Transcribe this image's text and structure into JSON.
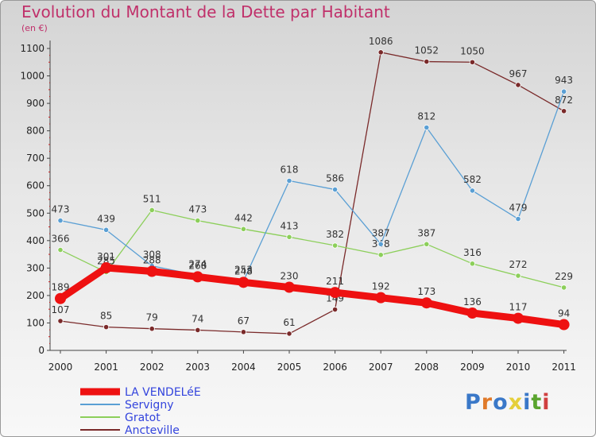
{
  "title": "Evolution du Montant de la Dette par Habitant",
  "subtitle": "(en €)",
  "logo": {
    "text": "Proxiti",
    "colors": [
      "#3a78c8",
      "#e07a2a",
      "#3a78c8",
      "#e5cf3a",
      "#3a78c8",
      "#5aa42e",
      "#d04040"
    ]
  },
  "chart_data": {
    "type": "line",
    "title": "Evolution du Montant de la Dette par Habitant",
    "ylabel": "(en €)",
    "xlabel": "",
    "x": [
      "2000",
      "2001",
      "2002",
      "2003",
      "2004",
      "2005",
      "2006",
      "2007",
      "2008",
      "2009",
      "2010",
      "2011"
    ],
    "ylim": [
      0,
      1100
    ],
    "yticks": [
      "0",
      "100",
      "200",
      "300",
      "400",
      "500",
      "600",
      "700",
      "800",
      "900",
      "1000",
      "1100"
    ],
    "grid": false,
    "legend": "bottom-left",
    "series": [
      {
        "name": "Ancteville",
        "color": "#7a2a2a",
        "values": [
          107,
          85,
          79,
          74,
          67,
          61,
          149,
          1086,
          1052,
          1050,
          967,
          872
        ]
      },
      {
        "name": "Gratot",
        "color": "#8ccf5a",
        "values": [
          366,
          285,
          511,
          473,
          442,
          413,
          382,
          348,
          387,
          316,
          272,
          229
        ]
      },
      {
        "name": "Servigny",
        "color": "#5a9fd4",
        "values": [
          473,
          439,
          308,
          274,
          253,
          618,
          586,
          387,
          812,
          582,
          479,
          943
        ]
      },
      {
        "name": "LA VENDELéE",
        "color": "#ee1111",
        "values": [
          189,
          301,
          288,
          268,
          248,
          230,
          211,
          192,
          173,
          136,
          117,
          94
        ]
      }
    ],
    "legend_order": [
      "LA VENDELéE",
      "Servigny",
      "Gratot",
      "Ancteville"
    ],
    "legend_colors": {
      "LA VENDELéE": "#3344dd",
      "Servigny": "#3344dd",
      "Gratot": "#3344dd",
      "Ancteville": "#3344dd"
    }
  }
}
